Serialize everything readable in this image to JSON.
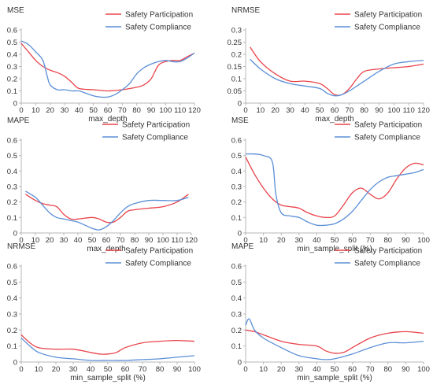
{
  "colors": {
    "participation": "#e8434a",
    "compliance": "#5b8fd6",
    "axis": "#b7b7b7",
    "text": "#333333"
  },
  "legend_labels": [
    "Safety Participation",
    "Safety Compliance"
  ],
  "chart_data": [
    {
      "type": "line",
      "ylabel": "MSE",
      "xlabel": "max_depth",
      "xlim": [
        0,
        120
      ],
      "ylim": [
        0,
        0.6
      ],
      "xticks": [
        0,
        10,
        20,
        30,
        40,
        50,
        60,
        70,
        80,
        90,
        100,
        110,
        120
      ],
      "yticks": [
        0,
        0.1,
        0.2,
        0.3,
        0.4,
        0.5,
        0.6
      ],
      "series": [
        {
          "name": "Safety Participation",
          "x": [
            0,
            5,
            10,
            15,
            20,
            25,
            30,
            35,
            40,
            50,
            60,
            70,
            80,
            85,
            90,
            95,
            100,
            105,
            110,
            115,
            120
          ],
          "y": [
            0.49,
            0.42,
            0.35,
            0.3,
            0.27,
            0.25,
            0.22,
            0.17,
            0.12,
            0.11,
            0.1,
            0.11,
            0.13,
            0.15,
            0.2,
            0.31,
            0.34,
            0.35,
            0.35,
            0.38,
            0.41
          ]
        },
        {
          "name": "Safety Compliance",
          "x": [
            0,
            5,
            10,
            15,
            18,
            20,
            25,
            30,
            35,
            40,
            45,
            50,
            55,
            60,
            65,
            70,
            75,
            80,
            85,
            90,
            95,
            100,
            105,
            110,
            115,
            120
          ],
          "y": [
            0.51,
            0.48,
            0.42,
            0.35,
            0.22,
            0.15,
            0.11,
            0.11,
            0.1,
            0.1,
            0.08,
            0.06,
            0.05,
            0.05,
            0.07,
            0.11,
            0.16,
            0.24,
            0.29,
            0.32,
            0.34,
            0.35,
            0.34,
            0.34,
            0.37,
            0.41
          ]
        }
      ]
    },
    {
      "type": "line",
      "ylabel": "NRMSE",
      "xlabel": "max_depth",
      "xlim": [
        0,
        120
      ],
      "ylim": [
        0,
        0.3
      ],
      "xticks": [
        0,
        10,
        20,
        30,
        40,
        50,
        60,
        70,
        80,
        90,
        100,
        110,
        120
      ],
      "yticks": [
        0,
        0.05,
        0.1,
        0.15,
        0.2,
        0.25,
        0.3
      ],
      "series": [
        {
          "name": "Safety Participation",
          "x": [
            3,
            10,
            20,
            30,
            40,
            50,
            55,
            60,
            65,
            70,
            75,
            80,
            90,
            100,
            110,
            120
          ],
          "y": [
            0.23,
            0.17,
            0.12,
            0.09,
            0.09,
            0.08,
            0.06,
            0.035,
            0.035,
            0.06,
            0.1,
            0.13,
            0.14,
            0.145,
            0.15,
            0.16
          ]
        },
        {
          "name": "Safety Compliance",
          "x": [
            3,
            10,
            20,
            30,
            40,
            50,
            55,
            60,
            65,
            70,
            75,
            80,
            90,
            100,
            110,
            120
          ],
          "y": [
            0.18,
            0.14,
            0.1,
            0.08,
            0.07,
            0.06,
            0.04,
            0.03,
            0.035,
            0.05,
            0.07,
            0.09,
            0.13,
            0.16,
            0.17,
            0.175
          ]
        }
      ]
    },
    {
      "type": "line",
      "ylabel": "MAPE",
      "xlabel": "max_depth",
      "xlim": [
        0,
        120
      ],
      "ylim": [
        0,
        0.6
      ],
      "xticks": [
        0,
        10,
        20,
        30,
        40,
        50,
        60,
        70,
        80,
        90,
        100,
        110,
        120
      ],
      "yticks": [
        0,
        0.1,
        0.2,
        0.3,
        0.4,
        0.5,
        0.6
      ],
      "series": [
        {
          "name": "Safety Participation",
          "x": [
            3,
            10,
            15,
            20,
            25,
            30,
            35,
            40,
            50,
            55,
            60,
            65,
            70,
            75,
            80,
            90,
            100,
            110,
            118
          ],
          "y": [
            0.25,
            0.21,
            0.19,
            0.18,
            0.17,
            0.12,
            0.09,
            0.09,
            0.1,
            0.09,
            0.07,
            0.07,
            0.1,
            0.14,
            0.15,
            0.16,
            0.17,
            0.2,
            0.25
          ]
        },
        {
          "name": "Safety Compliance",
          "x": [
            3,
            10,
            15,
            20,
            25,
            30,
            35,
            40,
            45,
            50,
            55,
            60,
            65,
            70,
            75,
            80,
            90,
            100,
            110,
            118
          ],
          "y": [
            0.27,
            0.23,
            0.18,
            0.13,
            0.1,
            0.09,
            0.08,
            0.07,
            0.05,
            0.03,
            0.02,
            0.04,
            0.08,
            0.13,
            0.17,
            0.19,
            0.21,
            0.21,
            0.21,
            0.23
          ]
        }
      ]
    },
    {
      "type": "line",
      "ylabel": "MSE",
      "xlabel": "min_sample_split (%)",
      "xlim": [
        0,
        100
      ],
      "ylim": [
        0,
        0.6
      ],
      "xticks": [
        0,
        10,
        20,
        30,
        40,
        50,
        60,
        70,
        80,
        90,
        100
      ],
      "yticks": [
        0,
        0.1,
        0.2,
        0.3,
        0.4,
        0.5,
        0.6
      ],
      "series": [
        {
          "name": "Safety Participation",
          "x": [
            0,
            5,
            10,
            15,
            20,
            25,
            30,
            35,
            40,
            45,
            50,
            55,
            60,
            65,
            70,
            75,
            80,
            85,
            90,
            95,
            100
          ],
          "y": [
            0.49,
            0.38,
            0.29,
            0.22,
            0.18,
            0.17,
            0.16,
            0.13,
            0.11,
            0.1,
            0.11,
            0.18,
            0.26,
            0.29,
            0.25,
            0.22,
            0.26,
            0.35,
            0.42,
            0.45,
            0.44
          ]
        },
        {
          "name": "Safety Compliance",
          "x": [
            0,
            5,
            10,
            15,
            17,
            20,
            25,
            30,
            35,
            40,
            45,
            50,
            55,
            60,
            65,
            70,
            75,
            80,
            85,
            90,
            95,
            100
          ],
          "y": [
            0.51,
            0.51,
            0.5,
            0.46,
            0.25,
            0.13,
            0.11,
            0.1,
            0.07,
            0.05,
            0.05,
            0.06,
            0.09,
            0.14,
            0.21,
            0.28,
            0.33,
            0.36,
            0.37,
            0.38,
            0.39,
            0.41
          ]
        }
      ]
    },
    {
      "type": "line",
      "ylabel": "NRMSE",
      "xlabel": "min_sample_split (%)",
      "xlim": [
        0,
        100
      ],
      "ylim": [
        0,
        0.6
      ],
      "xticks": [
        0,
        10,
        20,
        30,
        40,
        50,
        60,
        70,
        80,
        90,
        100
      ],
      "yticks": [
        0,
        0.1,
        0.2,
        0.3,
        0.4,
        0.5,
        0.6
      ],
      "series": [
        {
          "name": "Safety Participation",
          "x": [
            0,
            5,
            10,
            20,
            30,
            40,
            45,
            50,
            55,
            60,
            70,
            80,
            90,
            100
          ],
          "y": [
            0.17,
            0.12,
            0.09,
            0.08,
            0.08,
            0.06,
            0.05,
            0.05,
            0.06,
            0.09,
            0.12,
            0.13,
            0.135,
            0.13
          ]
        },
        {
          "name": "Safety Compliance",
          "x": [
            0,
            5,
            10,
            20,
            30,
            40,
            50,
            60,
            70,
            80,
            90,
            100
          ],
          "y": [
            0.15,
            0.1,
            0.06,
            0.03,
            0.02,
            0.01,
            0.01,
            0.01,
            0.015,
            0.02,
            0.03,
            0.04
          ]
        }
      ]
    },
    {
      "type": "line",
      "ylabel": "MAPE",
      "xlabel": "min_sample_split (%)",
      "xlim": [
        0,
        100
      ],
      "ylim": [
        0,
        0.6
      ],
      "xticks": [
        0,
        10,
        20,
        30,
        40,
        50,
        60,
        70,
        80,
        90,
        100
      ],
      "yticks": [
        0,
        0.1,
        0.2,
        0.3,
        0.4,
        0.5,
        0.6
      ],
      "series": [
        {
          "name": "Safety Participation",
          "x": [
            0,
            5,
            10,
            20,
            30,
            40,
            45,
            50,
            55,
            60,
            70,
            80,
            90,
            100
          ],
          "y": [
            0.2,
            0.19,
            0.17,
            0.13,
            0.11,
            0.1,
            0.07,
            0.055,
            0.06,
            0.09,
            0.15,
            0.18,
            0.19,
            0.18
          ]
        },
        {
          "name": "Safety Compliance",
          "x": [
            0,
            2,
            5,
            10,
            20,
            30,
            40,
            45,
            50,
            60,
            70,
            80,
            90,
            100
          ],
          "y": [
            0.23,
            0.27,
            0.2,
            0.15,
            0.09,
            0.04,
            0.02,
            0.015,
            0.02,
            0.05,
            0.09,
            0.12,
            0.12,
            0.13
          ]
        }
      ]
    }
  ]
}
